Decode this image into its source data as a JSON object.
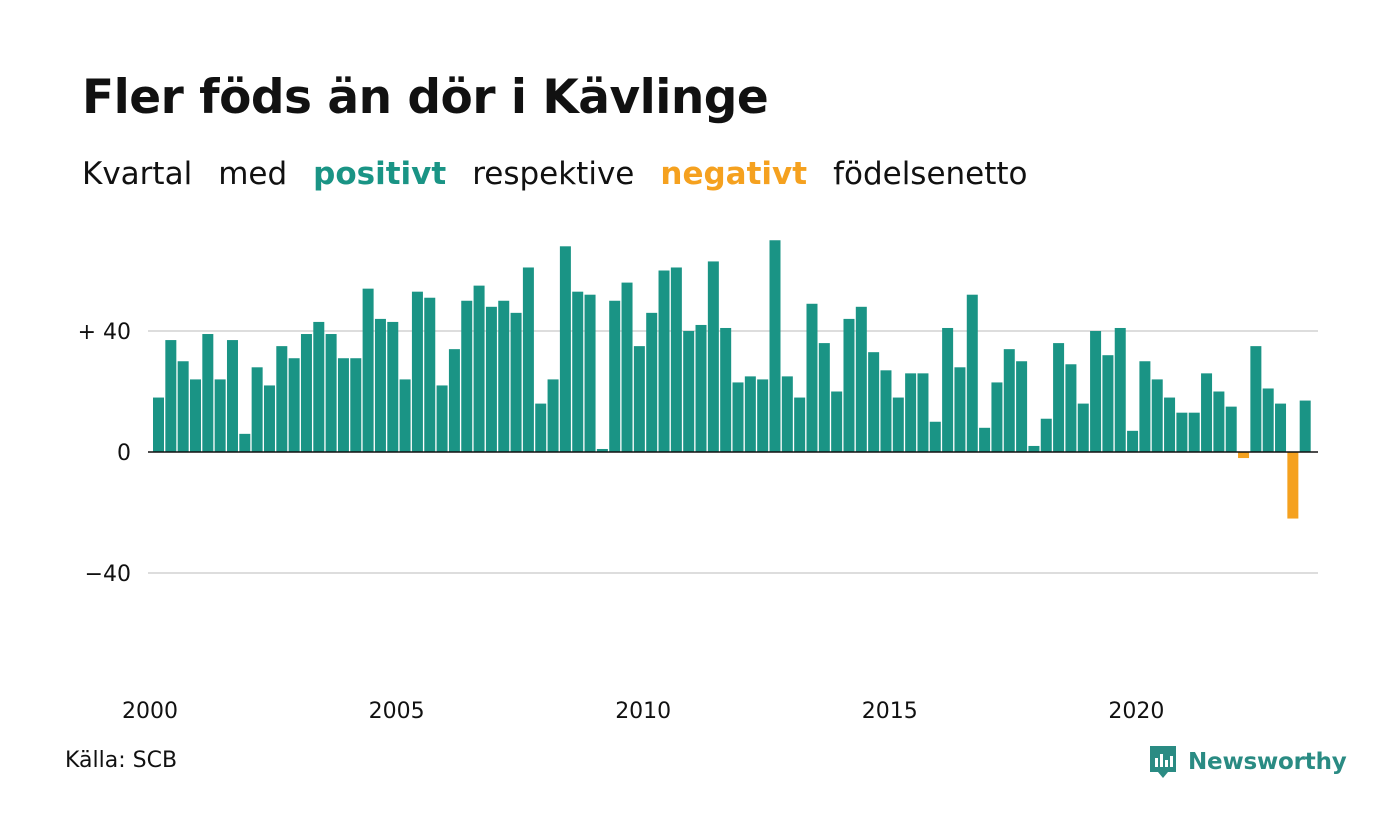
{
  "title": "Fler föds än dör i Kävlinge",
  "subtitle": {
    "w1": "Kvartal",
    "w2": "med",
    "positive": "positivt",
    "w3": "respektive",
    "negative": "negativt",
    "w4": "födelsenetto"
  },
  "source": "Källa: SCB",
  "brand": {
    "name": "Newsworthy",
    "icon": "newsworthy-logo-icon"
  },
  "colors": {
    "positive": "#1a9485",
    "negative": "#f5a11f",
    "grid": "#dddddd",
    "text": "#111111",
    "brand": "#2a8b83"
  },
  "chart_data": {
    "type": "bar",
    "title": "Fler föds än dör i Kävlinge",
    "period": "quarterly",
    "start_year": 2000,
    "x_tick_labels": [
      "2000",
      "2005",
      "2010",
      "2015",
      "2020"
    ],
    "y_tick_labels": [
      "+ 40",
      "0",
      "−40"
    ],
    "y_ticks": [
      40,
      0,
      -40
    ],
    "ylim": [
      -80,
      70
    ],
    "grid": true,
    "series": [
      {
        "values": [
          18,
          37,
          30,
          24,
          39,
          24,
          37,
          6,
          28,
          22,
          35,
          31,
          39,
          43,
          39,
          31,
          31,
          54,
          44,
          43,
          24,
          53,
          51,
          22,
          34,
          50,
          55,
          48,
          50,
          46,
          61,
          16,
          24,
          68,
          53,
          52,
          1,
          50,
          56,
          35,
          46,
          60,
          61,
          40,
          42,
          63,
          41,
          23,
          25,
          24,
          70,
          25,
          18,
          49,
          36,
          20,
          44,
          48,
          33,
          27,
          18,
          26,
          26,
          10,
          41,
          28,
          52,
          8,
          23,
          34,
          30,
          2,
          11,
          36,
          29,
          16,
          40,
          32,
          41,
          7,
          30,
          24,
          18,
          13,
          13,
          26,
          20,
          15,
          -2,
          35,
          21,
          16,
          -22,
          17
        ]
      }
    ]
  }
}
